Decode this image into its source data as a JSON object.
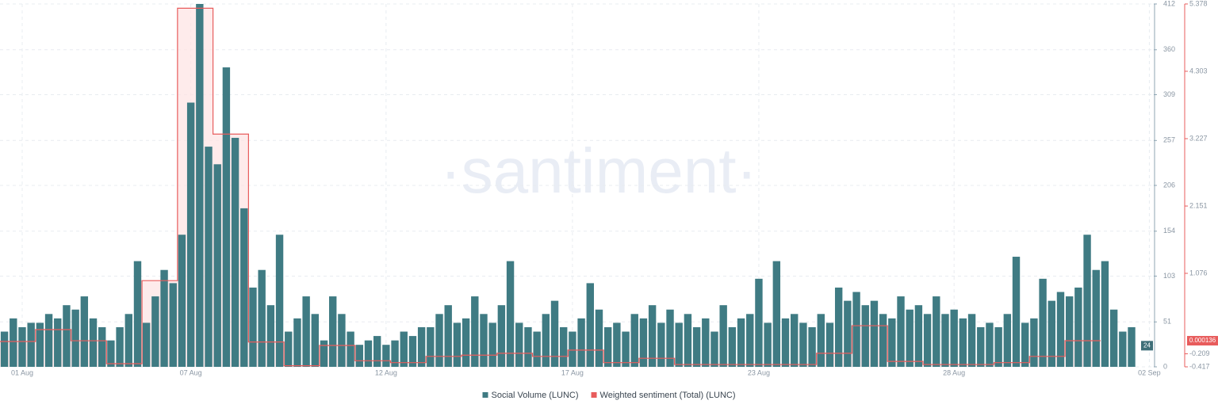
{
  "chart_data": {
    "type": "bar",
    "watermark": "·santiment·",
    "categories": [
      null,
      null,
      "01 Aug",
      null,
      null,
      null,
      null,
      null,
      null,
      null,
      null,
      null,
      null,
      null,
      null,
      null,
      null,
      null,
      null,
      null,
      null,
      "07 Aug",
      null,
      null,
      null,
      null,
      null,
      null,
      null,
      null,
      null,
      null,
      null,
      null,
      null,
      null,
      null,
      null,
      null,
      null,
      null,
      null,
      null,
      "12 Aug",
      null,
      null,
      null,
      null,
      null,
      null,
      null,
      null,
      null,
      null,
      null,
      null,
      null,
      null,
      null,
      null,
      null,
      null,
      null,
      null,
      "17 Aug",
      null,
      null,
      null,
      null,
      null,
      null,
      null,
      null,
      null,
      null,
      null,
      null,
      null,
      null,
      null,
      null,
      null,
      null,
      null,
      null,
      "23 Aug",
      null,
      null,
      null,
      null,
      null,
      null,
      null,
      null,
      null,
      null,
      null,
      null,
      null,
      null,
      null,
      null,
      null,
      null,
      null,
      null,
      null,
      "28 Aug",
      null,
      null,
      null,
      null,
      null,
      null,
      null,
      null,
      null,
      null,
      null,
      null,
      null,
      null,
      null,
      null,
      null,
      null,
      null,
      null,
      null,
      "02 Sep"
    ],
    "series": [
      {
        "name": "Social Volume (LUNC)",
        "type": "bar",
        "color": "#3f7b83",
        "values": [
          40,
          55,
          45,
          50,
          50,
          60,
          55,
          70,
          65,
          80,
          55,
          45,
          30,
          45,
          60,
          120,
          50,
          80,
          110,
          95,
          150,
          300,
          412,
          250,
          230,
          340,
          260,
          180,
          90,
          110,
          70,
          150,
          40,
          55,
          80,
          60,
          30,
          80,
          60,
          40,
          25,
          30,
          35,
          25,
          30,
          40,
          35,
          45,
          45,
          60,
          70,
          50,
          55,
          80,
          60,
          50,
          70,
          120,
          50,
          45,
          40,
          60,
          75,
          45,
          40,
          55,
          95,
          65,
          45,
          50,
          40,
          60,
          55,
          70,
          50,
          65,
          50,
          60,
          45,
          55,
          40,
          70,
          45,
          55,
          60,
          100,
          50,
          120,
          55,
          60,
          50,
          45,
          60,
          50,
          90,
          75,
          85,
          70,
          75,
          60,
          55,
          80,
          65,
          70,
          60,
          80,
          60,
          65,
          55,
          60,
          45,
          50,
          45,
          60,
          125,
          50,
          55,
          100,
          75,
          85,
          80,
          90,
          150,
          110,
          120,
          65,
          40,
          45,
          null,
          null
        ]
      },
      {
        "name": "Weighted sentiment (Total) (LUNC)",
        "type": "step",
        "axis": "y2",
        "color": "#e85c5c",
        "fill": "#fde4e4",
        "values": [
          -0.012,
          -0.012,
          -0.012,
          -0.012,
          0.178,
          0.178,
          0.178,
          0.178,
          0.0,
          0.0,
          0.0,
          0.0,
          -0.366,
          -0.366,
          -0.366,
          -0.366,
          0.96,
          0.96,
          0.96,
          0.96,
          5.31,
          5.31,
          5.31,
          5.31,
          3.3,
          3.3,
          3.3,
          3.3,
          -0.02,
          -0.02,
          -0.02,
          -0.02,
          -0.4,
          -0.4,
          -0.4,
          -0.4,
          -0.075,
          -0.075,
          -0.075,
          -0.075,
          -0.32,
          -0.32,
          -0.32,
          -0.32,
          -0.35,
          -0.35,
          -0.35,
          -0.35,
          -0.25,
          -0.25,
          -0.25,
          -0.25,
          -0.23,
          -0.23,
          -0.23,
          -0.23,
          -0.2,
          -0.2,
          -0.2,
          -0.2,
          -0.25,
          -0.25,
          -0.25,
          -0.25,
          -0.15,
          -0.15,
          -0.15,
          -0.15,
          -0.35,
          -0.35,
          -0.35,
          -0.35,
          -0.28,
          -0.28,
          -0.28,
          -0.28,
          -0.38,
          -0.38,
          -0.38,
          -0.38,
          -0.38,
          -0.38,
          -0.38,
          -0.38,
          -0.38,
          -0.38,
          -0.38,
          -0.38,
          -0.38,
          -0.38,
          -0.38,
          -0.38,
          -0.2,
          -0.2,
          -0.2,
          -0.2,
          0.24,
          0.24,
          0.24,
          0.24,
          -0.33,
          -0.33,
          -0.33,
          -0.33,
          -0.38,
          -0.38,
          -0.38,
          -0.38,
          -0.38,
          -0.38,
          -0.38,
          -0.38,
          -0.35,
          -0.35,
          -0.35,
          -0.35,
          -0.25,
          -0.25,
          -0.25,
          -0.25,
          0.000136,
          0.000136,
          0.000136,
          0.000136,
          null,
          null,
          null,
          null,
          null,
          null
        ]
      }
    ],
    "ylim": [
      0,
      412
    ],
    "yticks": [
      0,
      51,
      103,
      154,
      206,
      257,
      309,
      360,
      412
    ],
    "y2lim": [
      -0.417,
      5.378
    ],
    "y2ticks": [
      -0.417,
      -0.209,
      1.076,
      2.151,
      3.227,
      4.303,
      5.378
    ],
    "y_current": 24,
    "y2_current": 0.000136,
    "grid": true,
    "legend": "bottom"
  }
}
